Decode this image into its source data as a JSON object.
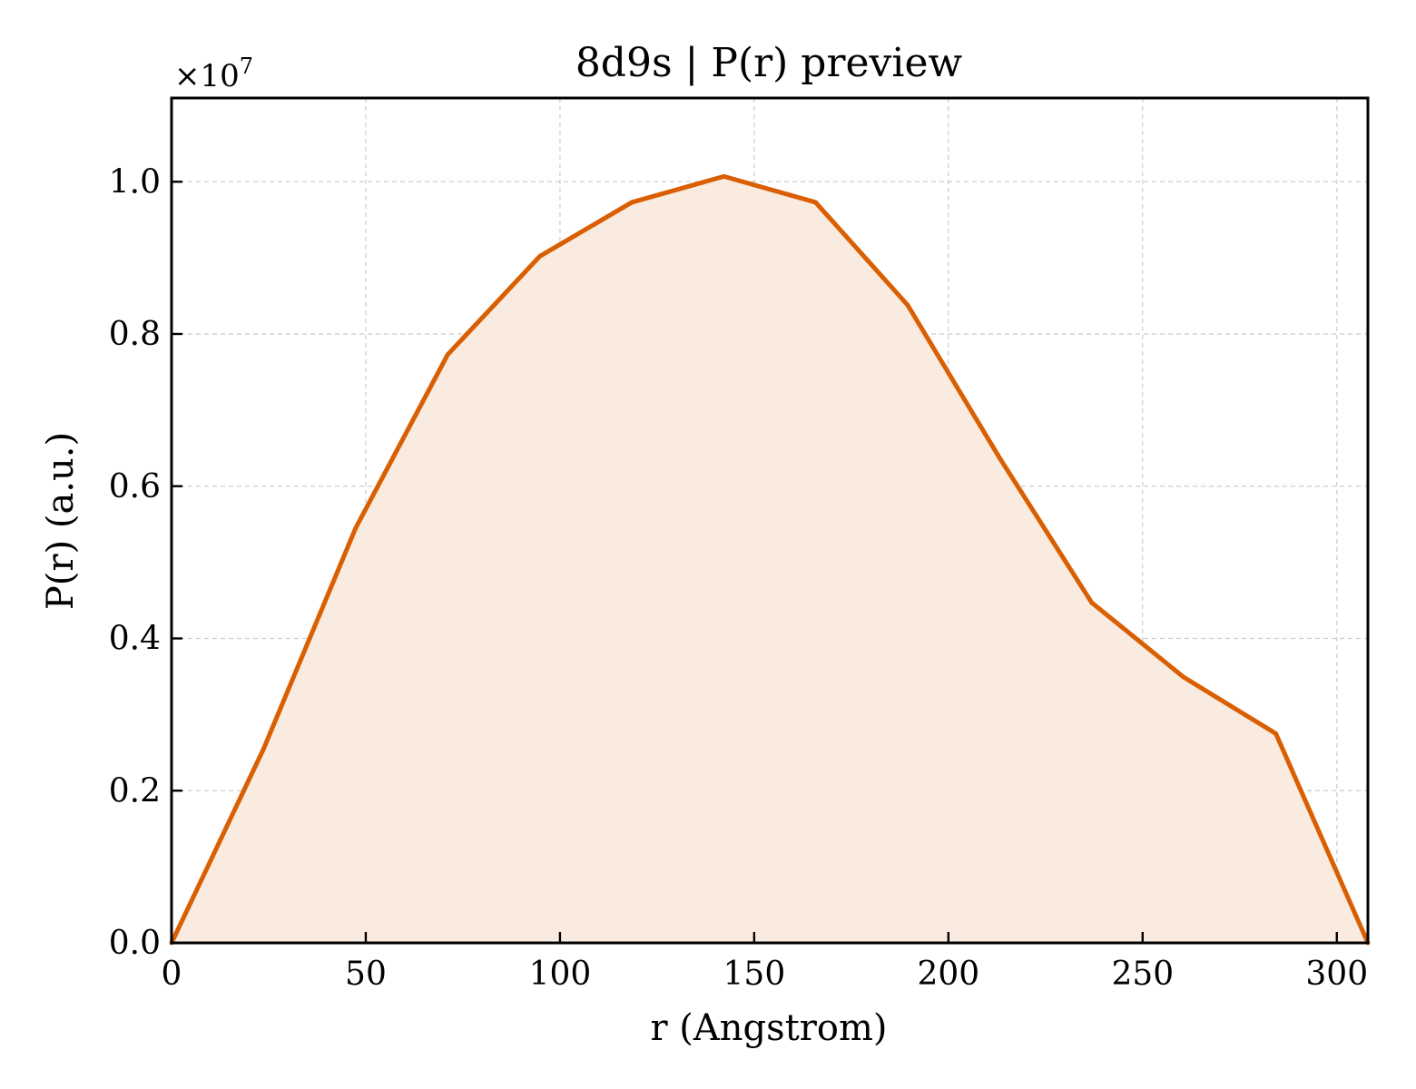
{
  "chart_data": {
    "type": "area",
    "title": "8d9s | P(r) preview",
    "xlabel": "r (Angstrom)",
    "ylabel": "P(r) (a.u.)",
    "y_multiplier_label": "×10",
    "y_multiplier_exponent": "7",
    "xlim": [
      0,
      308
    ],
    "ylim": [
      0,
      1.11
    ],
    "x_ticks": [
      0,
      50,
      100,
      150,
      200,
      250,
      300
    ],
    "y_ticks": [
      0.0,
      0.2,
      0.4,
      0.6,
      0.8,
      1.0
    ],
    "x_tick_labels": [
      "0",
      "50",
      "100",
      "150",
      "200",
      "250",
      "300"
    ],
    "y_tick_labels": [
      "0.0",
      "0.2",
      "0.4",
      "0.6",
      "0.8",
      "1.0"
    ],
    "grid": true,
    "series": [
      {
        "x": [
          0,
          23.7,
          47.4,
          71.1,
          94.8,
          118.5,
          142.2,
          165.8,
          189.5,
          213.2,
          236.9,
          260.6,
          284.3,
          308
        ],
        "y": [
          0.0,
          0.255,
          0.545,
          0.773,
          0.902,
          0.973,
          1.007,
          0.973,
          0.838,
          0.637,
          0.447,
          0.349,
          0.275,
          0.0
        ],
        "color": "#d95f02",
        "fill": "#f9ebe0"
      }
    ]
  }
}
